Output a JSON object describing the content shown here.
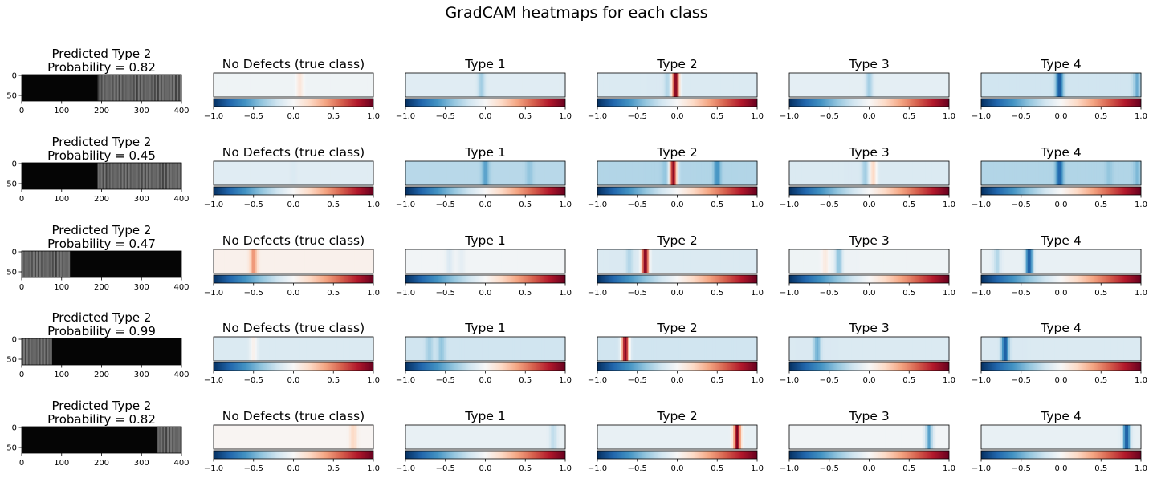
{
  "figure": {
    "title": "GradCAM heatmaps for each class"
  },
  "colors": {
    "cmap": "RdBu_r",
    "cmap_stops": [
      "#053061",
      "#2166ac",
      "#4393c3",
      "#92c5de",
      "#d1e5f0",
      "#f7f7f7",
      "#fddbc7",
      "#f4a582",
      "#d6604d",
      "#b2182b",
      "#67001f"
    ]
  },
  "chart_data": {
    "type": "heatmap",
    "image_axes": {
      "xlim": [
        0,
        400
      ],
      "xticks": [
        "0",
        "100",
        "200",
        "300",
        "400"
      ],
      "yticks": [
        "0",
        "50"
      ]
    },
    "colorbar": {
      "range": [
        -1.0,
        1.0
      ],
      "ticks": [
        "−1.0",
        "−0.5",
        "0.0",
        "0.5",
        "1.0"
      ]
    },
    "column_titles": [
      "No Defects (true class)",
      "Type 1",
      "Type 2",
      "Type 3",
      "Type 4"
    ],
    "rows": [
      {
        "title_line1": "Predicted Type 2",
        "title_line2": "Probability = 0.82",
        "image": {
          "bright_from": 190,
          "bright_to": 400
        },
        "heatmaps": [
          {
            "base": -0.05,
            "features": [
              {
                "x": 0.08,
                "v": 0.12
              }
            ]
          },
          {
            "base": -0.12,
            "features": [
              {
                "x": -0.05,
                "v": -0.35
              }
            ]
          },
          {
            "base": -0.15,
            "features": [
              {
                "x": -0.02,
                "v": 0.95
              },
              {
                "x": -0.12,
                "v": -0.3
              }
            ]
          },
          {
            "base": -0.1,
            "features": [
              {
                "x": 0.0,
                "v": -0.35
              }
            ]
          },
          {
            "base": -0.2,
            "features": [
              {
                "x": -0.02,
                "v": -0.85
              },
              {
                "x": 0.95,
                "v": -0.5
              }
            ]
          }
        ]
      },
      {
        "title_line1": "Predicted Type 2",
        "title_line2": "Probability = 0.45",
        "image": {
          "bright_from": 190,
          "bright_to": 400
        },
        "heatmaps": [
          {
            "base": -0.12,
            "features": [
              {
                "x": 0.0,
                "v": -0.15
              }
            ]
          },
          {
            "base": -0.28,
            "features": [
              {
                "x": 0.0,
                "v": -0.55
              },
              {
                "x": 0.55,
                "v": -0.4
              }
            ]
          },
          {
            "base": -0.3,
            "features": [
              {
                "x": -0.05,
                "v": 0.9
              },
              {
                "x": 0.5,
                "v": -0.6
              },
              {
                "x": -0.15,
                "v": -0.4
              }
            ]
          },
          {
            "base": -0.15,
            "features": [
              {
                "x": 0.05,
                "v": 0.2
              },
              {
                "x": -0.05,
                "v": -0.35
              }
            ]
          },
          {
            "base": -0.3,
            "features": [
              {
                "x": -0.02,
                "v": -0.8
              },
              {
                "x": 0.6,
                "v": -0.4
              },
              {
                "x": 0.95,
                "v": -0.45
              }
            ]
          }
        ]
      },
      {
        "title_line1": "Predicted Type 2",
        "title_line2": "Probability = 0.47",
        "image": {
          "bright_from": 0,
          "bright_to": 120
        },
        "heatmaps": [
          {
            "base": 0.05,
            "features": [
              {
                "x": -0.5,
                "v": 0.45
              }
            ]
          },
          {
            "base": -0.03,
            "features": [
              {
                "x": -0.45,
                "v": -0.15
              },
              {
                "x": -0.3,
                "v": -0.1
              }
            ]
          },
          {
            "base": -0.15,
            "features": [
              {
                "x": -0.4,
                "v": 0.95
              },
              {
                "x": -0.6,
                "v": -0.3
              }
            ]
          },
          {
            "base": -0.05,
            "features": [
              {
                "x": -0.38,
                "v": -0.4
              },
              {
                "x": -0.55,
                "v": 0.1
              }
            ]
          },
          {
            "base": -0.08,
            "features": [
              {
                "x": -0.4,
                "v": -0.85
              },
              {
                "x": -0.8,
                "v": -0.3
              }
            ]
          }
        ]
      },
      {
        "title_line1": "Predicted Type 2",
        "title_line2": "Probability = 0.99",
        "image": {
          "bright_from": 0,
          "bright_to": 75
        },
        "heatmaps": [
          {
            "base": -0.15,
            "features": [
              {
                "x": -0.5,
                "v": 0.05
              }
            ]
          },
          {
            "base": -0.2,
            "features": [
              {
                "x": -0.7,
                "v": -0.35
              },
              {
                "x": -0.55,
                "v": -0.4
              }
            ]
          },
          {
            "base": -0.2,
            "features": [
              {
                "x": -0.65,
                "v": 0.95
              }
            ]
          },
          {
            "base": -0.15,
            "features": [
              {
                "x": -0.65,
                "v": -0.5
              }
            ]
          },
          {
            "base": -0.15,
            "features": [
              {
                "x": -0.7,
                "v": -0.85
              }
            ]
          }
        ]
      },
      {
        "title_line1": "Predicted Type 2",
        "title_line2": "Probability = 0.82",
        "image": {
          "bright_from": 340,
          "bright_to": 400
        },
        "heatmaps": [
          {
            "base": 0.02,
            "features": [
              {
                "x": 0.75,
                "v": 0.2
              }
            ]
          },
          {
            "base": -0.08,
            "features": [
              {
                "x": 0.85,
                "v": -0.25
              }
            ]
          },
          {
            "base": -0.08,
            "features": [
              {
                "x": 0.75,
                "v": 0.95
              }
            ]
          },
          {
            "base": -0.03,
            "features": [
              {
                "x": 0.75,
                "v": -0.55
              }
            ]
          },
          {
            "base": -0.08,
            "features": [
              {
                "x": 0.82,
                "v": -0.85
              }
            ]
          }
        ]
      }
    ]
  }
}
